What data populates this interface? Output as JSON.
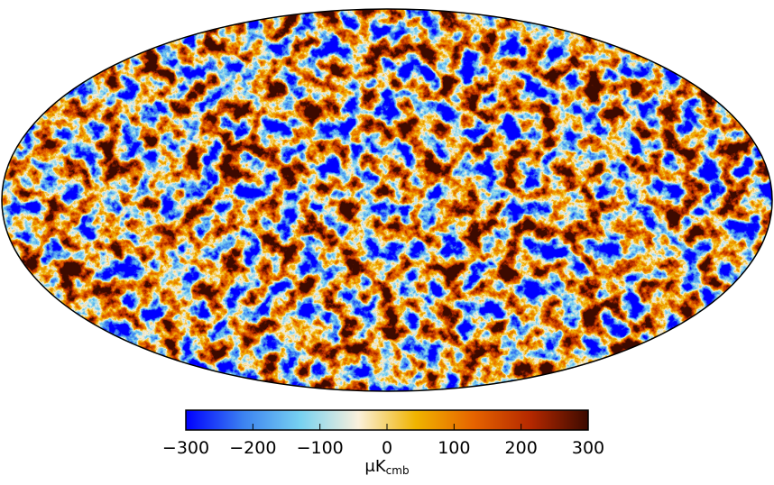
{
  "chart_data": {
    "type": "heatmap",
    "title": "",
    "projection": "mollweide",
    "colorbar": {
      "range": [
        -300,
        300
      ],
      "ticks": [
        -300,
        -200,
        -100,
        0,
        100,
        200,
        300
      ],
      "tick_labels": [
        "−300",
        "−200",
        "−100",
        "0",
        "100",
        "200",
        "300"
      ],
      "unit_main": "μK",
      "unit_sub": "cmb",
      "colors": [
        "#0000ff",
        "#3c82f0",
        "#78d2f0",
        "#faf0dc",
        "#f0b400",
        "#e66400",
        "#b42800",
        "#3c0a00"
      ]
    }
  }
}
